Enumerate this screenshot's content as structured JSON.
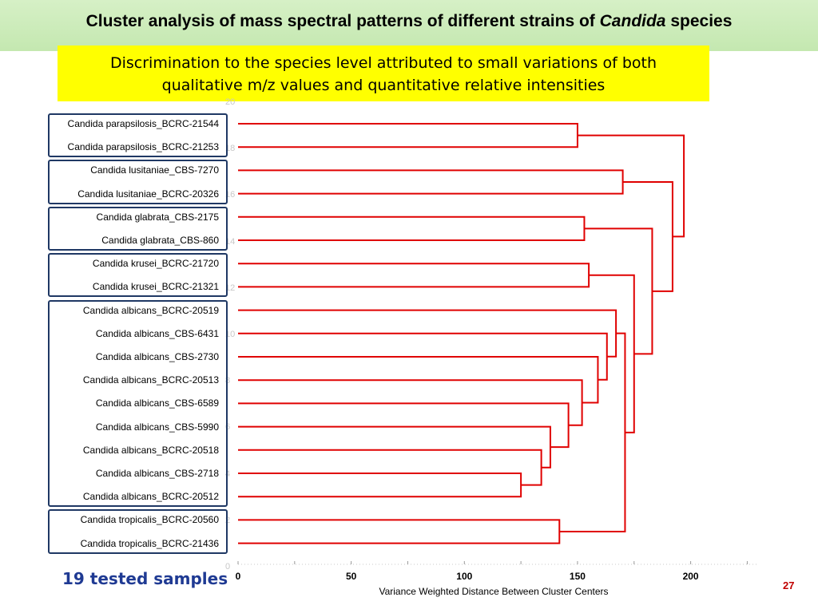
{
  "header": {
    "title_main": "Cluster analysis of mass spectral patterns of different strains of",
    "title_italic": "Candida",
    "title_end": "species"
  },
  "subtitle": {
    "line1": "Discrimination to the species level attributed to small variations of both",
    "line2": "qualitative m/z values and quantitative relative intensities"
  },
  "footer": {
    "tested_label": "19 tested samples",
    "page_number": "27"
  },
  "chart_data": {
    "type": "dendrogram",
    "xlabel": "Variance Weighted Distance Between Cluster Centers",
    "xlim": [
      0,
      230
    ],
    "xticks": [
      "0",
      "50",
      "100",
      "150",
      "200"
    ],
    "xtick_values": [
      0,
      50,
      100,
      150,
      200
    ],
    "ghost_yticks": [
      "20",
      "18",
      "16",
      "14",
      "12",
      "10",
      "8",
      "6",
      "4",
      "2",
      "0"
    ],
    "line_color": "#e00000",
    "box_color": "#1f3864",
    "leaves": [
      "Candida parapsilosis_BCRC-21544",
      "Candida parapsilosis_BCRC-21253",
      "Candida lusitaniae_CBS-7270",
      "Candida lusitaniae_BCRC-20326",
      "Candida glabrata_CBS-2175",
      "Candida glabrata_CBS-860",
      "Candida krusei_BCRC-21720",
      "Candida krusei_BCRC-21321",
      "Candida albicans_BCRC-20519",
      "Candida albicans_CBS-6431",
      "Candida albicans_CBS-2730",
      "Candida albicans_BCRC-20513",
      "Candida albicans_CBS-6589",
      "Candida albicans_CBS-5990",
      "Candida albicans_BCRC-20518",
      "Candida albicans_CBS-2718",
      "Candida albicans_BCRC-20512",
      "Candida tropicalis_BCRC-20560",
      "Candida tropicalis_BCRC-21436"
    ],
    "species_groups": [
      {
        "species": "Candida parapsilosis",
        "first": 0,
        "last": 1
      },
      {
        "species": "Candida lusitaniae",
        "first": 2,
        "last": 3
      },
      {
        "species": "Candida glabrata",
        "first": 4,
        "last": 5
      },
      {
        "species": "Candida krusei",
        "first": 6,
        "last": 7
      },
      {
        "species": "Candida albicans",
        "first": 8,
        "last": 16
      },
      {
        "species": "Candida tropicalis",
        "first": 17,
        "last": 18
      }
    ],
    "merges": [
      {
        "id": "m1",
        "children": [
          "L15",
          "L16"
        ],
        "distance": 125
      },
      {
        "id": "m2",
        "children": [
          "L14",
          "m1"
        ],
        "distance": 134
      },
      {
        "id": "m3",
        "children": [
          "L13",
          "m2"
        ],
        "distance": 138
      },
      {
        "id": "m4",
        "children": [
          "L12",
          "m3"
        ],
        "distance": 146
      },
      {
        "id": "m5",
        "children": [
          "L11",
          "m4"
        ],
        "distance": 152
      },
      {
        "id": "m6",
        "children": [
          "L10",
          "m5"
        ],
        "distance": 159
      },
      {
        "id": "m7",
        "children": [
          "L9",
          "m6"
        ],
        "distance": 163
      },
      {
        "id": "m8",
        "children": [
          "L8",
          "m7"
        ],
        "distance": 167
      },
      {
        "id": "m9",
        "children": [
          "L17",
          "L18"
        ],
        "distance": 142
      },
      {
        "id": "m10",
        "children": [
          "m8",
          "m9"
        ],
        "distance": 171
      },
      {
        "id": "m11",
        "children": [
          "L6",
          "L7"
        ],
        "distance": 155
      },
      {
        "id": "m12",
        "children": [
          "m11",
          "m10"
        ],
        "distance": 175
      },
      {
        "id": "m13",
        "children": [
          "L4",
          "L5"
        ],
        "distance": 153
      },
      {
        "id": "m14",
        "children": [
          "m13",
          "m12"
        ],
        "distance": 183
      },
      {
        "id": "m15",
        "children": [
          "L2",
          "L3"
        ],
        "distance": 170
      },
      {
        "id": "m16",
        "children": [
          "m15",
          "m14"
        ],
        "distance": 192
      },
      {
        "id": "m17",
        "children": [
          "L0",
          "L1"
        ],
        "distance": 150
      },
      {
        "id": "m18",
        "children": [
          "m17",
          "m16"
        ],
        "distance": 197
      }
    ]
  }
}
